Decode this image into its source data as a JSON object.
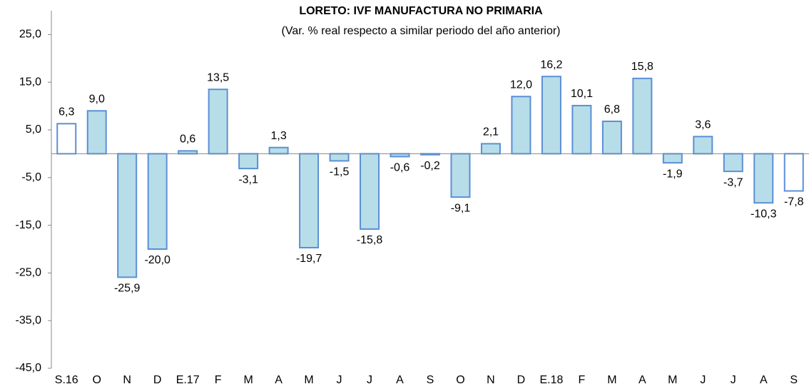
{
  "chart_data": {
    "type": "bar",
    "title": "LORETO: IVF MANUFACTURA NO PRIMARIA",
    "subtitle": "(Var. % real respecto a similar periodo del año anterior)",
    "categories": [
      "S.16",
      "O",
      "N",
      "D",
      "E.17",
      "F",
      "M",
      "A",
      "M",
      "J",
      "J",
      "A",
      "S",
      "O",
      "N",
      "D",
      "E.18",
      "F",
      "M",
      "A",
      "M",
      "J",
      "J",
      "A",
      "S"
    ],
    "values": [
      6.3,
      9.0,
      -25.9,
      -20.0,
      0.6,
      13.5,
      -3.1,
      1.3,
      -19.7,
      -1.5,
      -15.8,
      -0.6,
      -0.2,
      -9.1,
      2.1,
      12.0,
      16.2,
      10.1,
      6.8,
      15.8,
      -1.9,
      3.6,
      -3.7,
      -10.3,
      -7.8
    ],
    "value_labels": [
      "6,3",
      "9,0",
      "-25,9",
      "-20,0",
      "0,6",
      "13,5",
      "-3,1",
      "1,3",
      "-19,7",
      "-1,5",
      "-15,8",
      "-0,6",
      "-0,2",
      "-9,1",
      "2,1",
      "12,0",
      "16,2",
      "10,1",
      "6,8",
      "15,8",
      "-1,9",
      "3,6",
      "-3,7",
      "-10,3",
      "-7,8"
    ],
    "colors": [
      "#ffffff",
      "#b7dde8",
      "#b7dde8",
      "#b7dde8",
      "#b7dde8",
      "#b7dde8",
      "#b7dde8",
      "#b7dde8",
      "#b7dde8",
      "#b7dde8",
      "#b7dde8",
      "#b7dde8",
      "#b7dde8",
      "#b7dde8",
      "#b7dde8",
      "#b7dde8",
      "#b7dde8",
      "#b7dde8",
      "#b7dde8",
      "#b7dde8",
      "#b7dde8",
      "#b7dde8",
      "#b7dde8",
      "#b7dde8",
      "#ffffff"
    ],
    "edge_color": "#5b8fd6",
    "ylim": [
      -45,
      30
    ],
    "yticks": [
      {
        "value": -45,
        "label": "-45,0"
      },
      {
        "value": -35,
        "label": "-35,0"
      },
      {
        "value": -25,
        "label": "-25,0"
      },
      {
        "value": -15,
        "label": "-15,0"
      },
      {
        "value": -5,
        "label": "-5,0"
      },
      {
        "value": 5,
        "label": "5,0"
      },
      {
        "value": 15,
        "label": "15,0"
      },
      {
        "value": 25,
        "label": "25,0"
      }
    ],
    "grid": false
  }
}
